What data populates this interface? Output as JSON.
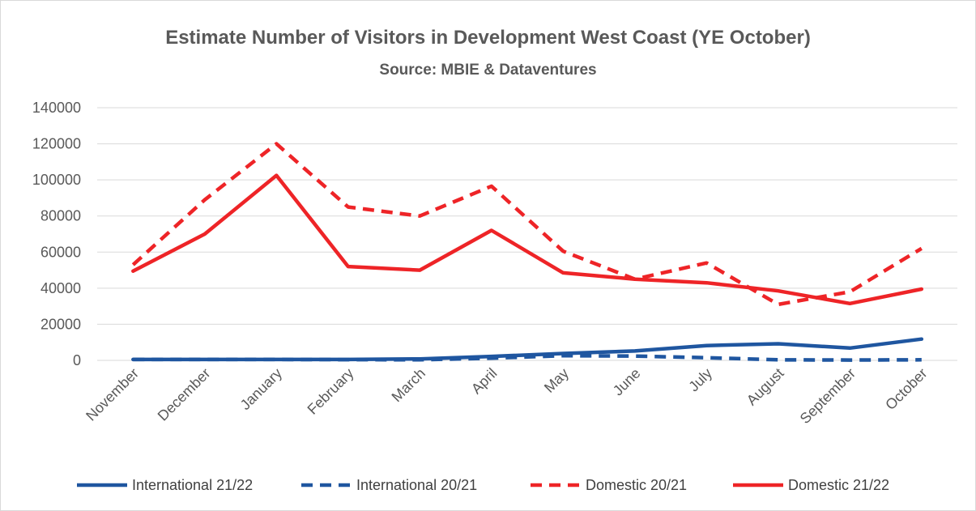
{
  "chart_data": {
    "type": "line",
    "title": "Estimate Number of Visitors in Development West Coast (YE October)",
    "subtitle": "Source: MBIE & Dataventures",
    "xlabel": "",
    "ylabel": "",
    "categories": [
      "November",
      "December",
      "January",
      "February",
      "March",
      "April",
      "May",
      "June",
      "July",
      "August",
      "September",
      "October"
    ],
    "ylim": [
      0,
      140000
    ],
    "yticks": [
      0,
      20000,
      40000,
      60000,
      80000,
      100000,
      120000,
      140000
    ],
    "grid": true,
    "legend_position": "bottom",
    "series": [
      {
        "name": "International 21/22",
        "color": "#1f56a0",
        "dash": "solid",
        "values": [
          500,
          500,
          500,
          500,
          800,
          2200,
          3800,
          5200,
          8200,
          9200,
          6800,
          11800
        ]
      },
      {
        "name": "International 20/21",
        "color": "#1f56a0",
        "dash": "dashed",
        "values": [
          500,
          500,
          500,
          400,
          300,
          1200,
          2600,
          2400,
          1500,
          300,
          200,
          300
        ]
      },
      {
        "name": "Domestic 20/21",
        "color": "#ee2427",
        "dash": "dashed",
        "values": [
          53000,
          89000,
          120000,
          85000,
          80000,
          96500,
          60500,
          45000,
          54000,
          31000,
          38000,
          62000
        ]
      },
      {
        "name": "Domestic 21/22",
        "color": "#ee2427",
        "dash": "solid",
        "values": [
          49500,
          70000,
          102500,
          52000,
          50000,
          72000,
          48500,
          45000,
          43000,
          38500,
          31500,
          39500
        ]
      }
    ]
  }
}
